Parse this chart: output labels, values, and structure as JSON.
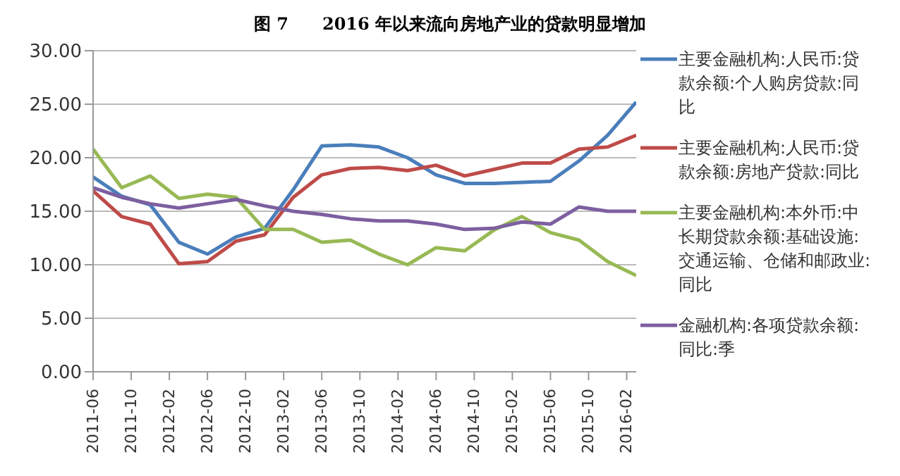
{
  "chart_data": {
    "type": "line",
    "title": "图 7　　2016 年以来流向房地产业的贷款明显增加",
    "x": [
      "2011-06",
      "2011-09",
      "2011-12",
      "2012-03",
      "2012-06",
      "2012-09",
      "2012-12",
      "2013-03",
      "2013-06",
      "2013-09",
      "2013-12",
      "2014-03",
      "2014-06",
      "2014-09",
      "2014-12",
      "2015-03",
      "2015-06",
      "2015-09",
      "2015-12",
      "2016-03"
    ],
    "series": [
      {
        "name": "主要金融机构:人民币:贷款余额:个人购房贷款:同比",
        "color": "#4a7ebb",
        "values": [
          18.2,
          16.4,
          15.6,
          12.1,
          11.0,
          12.6,
          13.4,
          17.0,
          21.1,
          21.2,
          21.0,
          20.0,
          18.4,
          17.6,
          17.6,
          17.7,
          17.8,
          19.7,
          22.1,
          25.2
        ]
      },
      {
        "name": "主要金融机构:人民币:贷款余额:房地产贷款:同比",
        "color": "#be4b48",
        "values": [
          16.9,
          14.5,
          13.8,
          10.1,
          10.3,
          12.2,
          12.8,
          16.3,
          18.4,
          19.0,
          19.1,
          18.8,
          19.3,
          18.3,
          18.9,
          19.5,
          19.5,
          20.8,
          21.0,
          22.1
        ]
      },
      {
        "name": "主要金融机构:本外币:中长期贷款余额:基础设施:交通运输、仓储和邮政业:同比",
        "color": "#98b954",
        "values": [
          20.8,
          17.2,
          18.3,
          16.2,
          16.6,
          16.3,
          13.3,
          13.3,
          12.1,
          12.3,
          11.0,
          10.0,
          11.6,
          11.3,
          13.2,
          14.5,
          13.0,
          12.3,
          10.3,
          9.0
        ]
      },
      {
        "name": "金融机构:各项贷款余额:同比:季",
        "color": "#7d5fa0",
        "values": [
          17.2,
          16.3,
          15.7,
          15.3,
          15.7,
          16.1,
          15.5,
          15.0,
          14.7,
          14.3,
          14.1,
          14.1,
          13.8,
          13.3,
          13.4,
          14.0,
          13.8,
          15.4,
          15.0,
          15.0
        ]
      }
    ],
    "xlim": [
      "2011-06",
      "2016-03"
    ],
    "xticks": [
      "2011-06",
      "2011-10",
      "2012-02",
      "2012-06",
      "2012-10",
      "2013-02",
      "2013-06",
      "2013-10",
      "2014-02",
      "2014-06",
      "2014-10",
      "2015-02",
      "2015-06",
      "2015-10",
      "2016-02"
    ],
    "ylim": [
      0,
      30
    ],
    "yticks": [
      {
        "value": 0,
        "label": "0.00"
      },
      {
        "value": 5,
        "label": "5.00"
      },
      {
        "value": 10,
        "label": "10.00"
      },
      {
        "value": 15,
        "label": "15.00"
      },
      {
        "value": 20,
        "label": "20.00"
      },
      {
        "value": 25,
        "label": "25.00"
      },
      {
        "value": 30,
        "label": "30.00"
      }
    ],
    "grid": "y",
    "legend": "right",
    "marker": "none",
    "line_style": "solid"
  }
}
